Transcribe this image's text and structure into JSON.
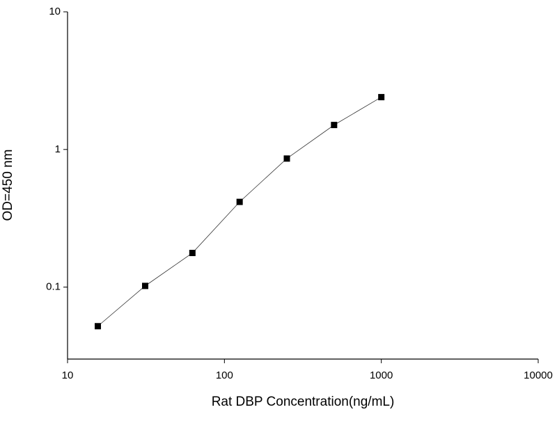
{
  "chart_data": {
    "type": "line",
    "x_label": "Rat DBP Concentration(ng/mL)",
    "y_label": "OD=450 nm",
    "x": [
      15.6,
      31.25,
      62.5,
      125,
      250,
      500,
      1000
    ],
    "series": [
      {
        "color": "#000000",
        "values": [
          0.052,
          0.102,
          0.177,
          0.416,
          0.859,
          1.506,
          2.4
        ]
      }
    ],
    "xlim": [
      10,
      10000
    ],
    "xticks": [
      10,
      100,
      1000,
      10000
    ],
    "ylim": [
      0.03,
      10
    ],
    "yticks": [
      0.1,
      1,
      10
    ],
    "xscale": "log",
    "yscale": "log",
    "grid": false,
    "markers": "square"
  }
}
